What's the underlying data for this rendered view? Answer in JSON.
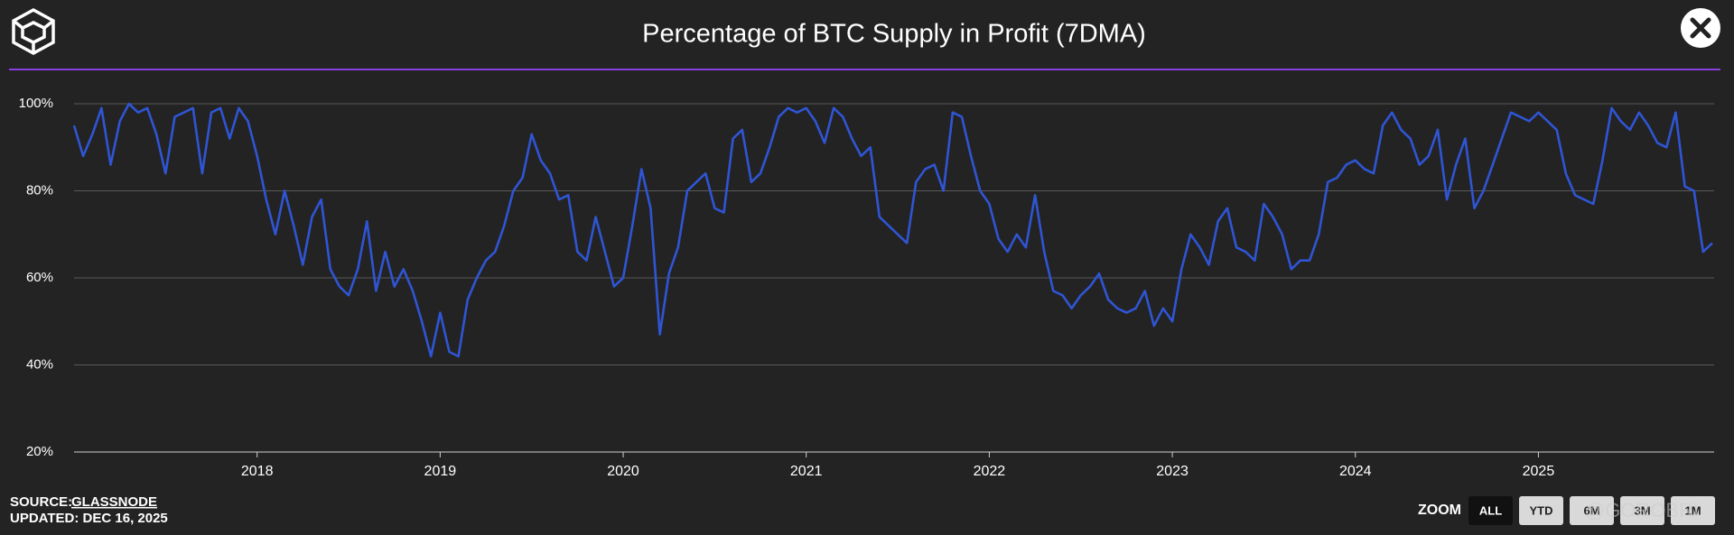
{
  "chart_data": {
    "type": "line",
    "title": "Percentage of BTC Supply in Profit (7DMA)",
    "x": [
      2017.0,
      2017.05,
      2017.1,
      2017.15,
      2017.2,
      2017.25,
      2017.3,
      2017.35,
      2017.4,
      2017.45,
      2017.5,
      2017.55,
      2017.6,
      2017.65,
      2017.7,
      2017.75,
      2017.8,
      2017.85,
      2017.9,
      2017.95,
      2018.0,
      2018.05,
      2018.1,
      2018.15,
      2018.2,
      2018.25,
      2018.3,
      2018.35,
      2018.4,
      2018.45,
      2018.5,
      2018.55,
      2018.6,
      2018.65,
      2018.7,
      2018.75,
      2018.8,
      2018.85,
      2018.9,
      2018.95,
      2019.0,
      2019.05,
      2019.1,
      2019.15,
      2019.2,
      2019.25,
      2019.3,
      2019.35,
      2019.4,
      2019.45,
      2019.5,
      2019.55,
      2019.6,
      2019.65,
      2019.7,
      2019.75,
      2019.8,
      2019.85,
      2019.9,
      2019.95,
      2020.0,
      2020.05,
      2020.1,
      2020.15,
      2020.2,
      2020.25,
      2020.3,
      2020.35,
      2020.4,
      2020.45,
      2020.5,
      2020.55,
      2020.6,
      2020.65,
      2020.7,
      2020.75,
      2020.8,
      2020.85,
      2020.9,
      2020.95,
      2021.0,
      2021.05,
      2021.1,
      2021.15,
      2021.2,
      2021.25,
      2021.3,
      2021.35,
      2021.4,
      2021.45,
      2021.5,
      2021.55,
      2021.6,
      2021.65,
      2021.7,
      2021.75,
      2021.8,
      2021.85,
      2021.9,
      2021.95,
      2022.0,
      2022.05,
      2022.1,
      2022.15,
      2022.2,
      2022.25,
      2022.3,
      2022.35,
      2022.4,
      2022.45,
      2022.5,
      2022.55,
      2022.6,
      2022.65,
      2022.7,
      2022.75,
      2022.8,
      2022.85,
      2022.9,
      2022.95,
      2023.0,
      2023.05,
      2023.1,
      2023.15,
      2023.2,
      2023.25,
      2023.3,
      2023.35,
      2023.4,
      2023.45,
      2023.5,
      2023.55,
      2023.6,
      2023.65,
      2023.7,
      2023.75,
      2023.8,
      2023.85,
      2023.9,
      2023.95,
      2024.0,
      2024.05,
      2024.1,
      2024.15,
      2024.2,
      2024.25,
      2024.3,
      2024.35,
      2024.4,
      2024.45,
      2024.5,
      2024.55,
      2024.6,
      2024.65,
      2024.7,
      2024.75,
      2024.8,
      2024.85,
      2024.9,
      2024.95,
      2025.0,
      2025.05,
      2025.1,
      2025.15,
      2025.2,
      2025.25,
      2025.3,
      2025.35,
      2025.4,
      2025.45,
      2025.5,
      2025.55,
      2025.6,
      2025.65,
      2025.7,
      2025.75,
      2025.8,
      2025.85,
      2025.9,
      2025.95
    ],
    "series": [
      {
        "name": "Percentage of BTC Supply in Profit (7DMA)",
        "color": "#2f55d4",
        "values": [
          95,
          88,
          93,
          99,
          86,
          96,
          100,
          98,
          99,
          93,
          84,
          97,
          98,
          99,
          84,
          98,
          99,
          92,
          99,
          96,
          88,
          78,
          70,
          80,
          72,
          63,
          74,
          78,
          62,
          58,
          56,
          62,
          73,
          57,
          66,
          58,
          62,
          57,
          50,
          42,
          52,
          43,
          42,
          55,
          60,
          64,
          66,
          72,
          80,
          83,
          93,
          87,
          84,
          78,
          79,
          66,
          64,
          74,
          66,
          58,
          60,
          72,
          85,
          76,
          47,
          61,
          67,
          80,
          82,
          84,
          76,
          75,
          92,
          94,
          82,
          84,
          90,
          97,
          99,
          98,
          99,
          96,
          91,
          99,
          97,
          92,
          88,
          90,
          74,
          72,
          70,
          68,
          82,
          85,
          86,
          80,
          98,
          97,
          88,
          80,
          77,
          69,
          66,
          70,
          67,
          79,
          66,
          57,
          56,
          53,
          56,
          58,
          61,
          55,
          53,
          52,
          53,
          57,
          49,
          53,
          50,
          62,
          70,
          67,
          63,
          73,
          76,
          67,
          66,
          64,
          77,
          74,
          70,
          62,
          64,
          64,
          70,
          82,
          83,
          86,
          87,
          85,
          84,
          95,
          98,
          94,
          92,
          86,
          88,
          94,
          78,
          86,
          92,
          76,
          80,
          86,
          92,
          98,
          97,
          96,
          98,
          96,
          94,
          84,
          79,
          78,
          77,
          87,
          99,
          96,
          94,
          98,
          95,
          91,
          90,
          98,
          81,
          80,
          66,
          68
        ]
      }
    ],
    "xlim": [
      2017.0,
      2025.96
    ],
    "xticks": [
      2018,
      2019,
      2020,
      2021,
      2022,
      2023,
      2024,
      2025
    ],
    "ylim": [
      20,
      100
    ],
    "yticks": [
      {
        "value": 20,
        "label": "20%"
      },
      {
        "value": 40,
        "label": "40%"
      },
      {
        "value": 60,
        "label": "60%"
      },
      {
        "value": 80,
        "label": "80%"
      },
      {
        "value": 100,
        "label": "100%"
      }
    ],
    "grid": true
  },
  "footer": {
    "source_label": "SOURCE:",
    "source": "GLASSNODE",
    "updated": "UPDATED: DEC 16, 2025"
  },
  "zoom": {
    "label": "ZOOM",
    "buttons": [
      "ALL",
      "YTD",
      "6M",
      "3M",
      "1M"
    ]
  },
  "watermark": "@GOROBRI"
}
